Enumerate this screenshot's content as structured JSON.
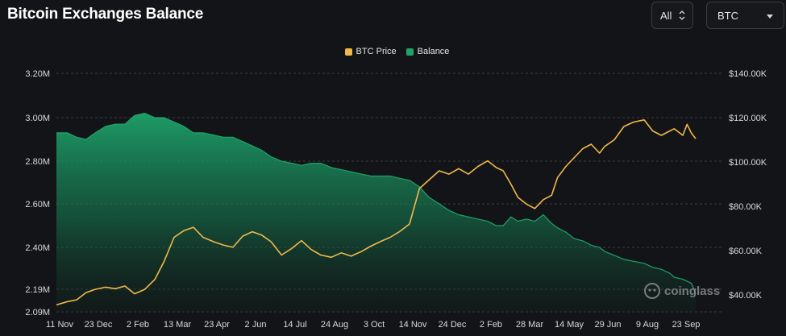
{
  "header": {
    "title": "Bitcoin Exchanges Balance",
    "range_select": "All",
    "coin_select": "BTC"
  },
  "watermark": "coinglass",
  "colors": {
    "btc_price": "#F0B94A",
    "balance": "#1EA36A",
    "background": "#131417",
    "grid": "#3a3c40",
    "text": "#e6e6e6"
  },
  "chart_data": {
    "type": "line",
    "title": "Bitcoin Exchanges Balance",
    "legend_position": "top-center",
    "grid": true,
    "x_ticks": [
      "11 Nov",
      "23 Dec",
      "2 Feb",
      "13 Mar",
      "23 Apr",
      "2 Jun",
      "14 Jul",
      "24 Aug",
      "3 Oct",
      "14 Nov",
      "24 Dec",
      "2 Feb",
      "28 Mar",
      "14 May",
      "29 Jun",
      "9 Aug",
      "23 Sep"
    ],
    "y_left": {
      "ticks": [
        "3.20M",
        "3.00M",
        "2.80M",
        "2.60M",
        "2.40M",
        "2.19M",
        "2.09M"
      ],
      "tick_values": [
        3.2,
        3.0,
        2.8,
        2.6,
        2.4,
        2.19,
        2.09
      ],
      "range": [
        2.09,
        3.2
      ]
    },
    "y_right": {
      "ticks": [
        "$140.00K",
        "$120.00K",
        "$100.00K",
        "$80.00K",
        "$60.00K",
        "$40.00K"
      ],
      "tick_values": [
        140,
        120,
        100,
        80,
        60,
        40
      ],
      "range": [
        30,
        140
      ]
    },
    "series": [
      {
        "name": "BTC Price",
        "axis": "right",
        "type": "line",
        "x": [
          "11 Nov",
          "23 Nov",
          "3 Dec",
          "13 Dec",
          "23 Dec",
          "3 Jan",
          "13 Jan",
          "23 Jan",
          "2 Feb",
          "12 Feb",
          "22 Feb",
          "3 Mar",
          "13 Mar",
          "23 Mar",
          "2 Apr",
          "12 Apr",
          "23 Apr",
          "3 May",
          "13 May",
          "23 May",
          "2 Jun",
          "12 Jun",
          "22 Jun",
          "3 Jul",
          "14 Jul",
          "24 Jul",
          "3 Aug",
          "13 Aug",
          "24 Aug",
          "3 Sep",
          "13 Sep",
          "23 Sep",
          "3 Oct",
          "13 Oct",
          "24 Oct",
          "3 Nov",
          "14 Nov",
          "24 Nov",
          "4 Dec",
          "14 Dec",
          "24 Dec",
          "3 Jan",
          "13 Jan",
          "23 Jan",
          "2 Feb",
          "14 Feb",
          "24 Feb",
          "6 Mar",
          "16 Mar",
          "28 Mar",
          "7 Apr",
          "17 Apr",
          "27 Apr",
          "4 May",
          "14 May",
          "24 May",
          "3 Jun",
          "13 Jun",
          "23 Jun",
          "29 Jun",
          "9 Jul",
          "19 Jul",
          "29 Jul",
          "9 Aug",
          "19 Aug",
          "29 Aug",
          "8 Sep",
          "13 Sep",
          "23 Sep",
          "28 Sep",
          "3 Oct",
          "8 Oct"
        ],
        "values": [
          35.5,
          37,
          37.8,
          41,
          42.5,
          43.5,
          42.8,
          44,
          40.5,
          42.5,
          47,
          55,
          66,
          69,
          70.5,
          66,
          64,
          62.5,
          61.5,
          66.5,
          68.5,
          67,
          64,
          58,
          61,
          64.5,
          60.5,
          58,
          57,
          59,
          57.5,
          59.5,
          62,
          64,
          66,
          68.5,
          72,
          88,
          92,
          96,
          94.5,
          97,
          94.5,
          98,
          100.5,
          97.5,
          96,
          90,
          84,
          81,
          79,
          83,
          85,
          93,
          98,
          102,
          106,
          108,
          104,
          107,
          110,
          116,
          118,
          119,
          114,
          112,
          114,
          115,
          112,
          117,
          113,
          110.5
        ]
      },
      {
        "name": "Balance",
        "axis": "left",
        "type": "area",
        "x": [
          "11 Nov",
          "23 Nov",
          "3 Dec",
          "13 Dec",
          "23 Dec",
          "3 Jan",
          "13 Jan",
          "23 Jan",
          "2 Feb",
          "12 Feb",
          "22 Feb",
          "3 Mar",
          "13 Mar",
          "23 Mar",
          "2 Apr",
          "12 Apr",
          "23 Apr",
          "3 May",
          "13 May",
          "23 May",
          "2 Jun",
          "12 Jun",
          "22 Jun",
          "3 Jul",
          "14 Jul",
          "24 Jul",
          "3 Aug",
          "13 Aug",
          "24 Aug",
          "3 Sep",
          "13 Sep",
          "23 Sep",
          "3 Oct",
          "13 Oct",
          "24 Oct",
          "3 Nov",
          "14 Nov",
          "24 Nov",
          "4 Dec",
          "14 Dec",
          "24 Dec",
          "3 Jan",
          "13 Jan",
          "23 Jan",
          "2 Feb",
          "14 Feb",
          "24 Feb",
          "6 Mar",
          "16 Mar",
          "28 Mar",
          "7 Apr",
          "17 Apr",
          "27 Apr",
          "4 May",
          "14 May",
          "24 May",
          "3 Jun",
          "13 Jun",
          "23 Jun",
          "29 Jun",
          "9 Jul",
          "19 Jul",
          "29 Jul",
          "9 Aug",
          "19 Aug",
          "29 Aug",
          "8 Sep",
          "13 Sep",
          "23 Sep",
          "28 Sep",
          "3 Oct",
          "8 Oct"
        ],
        "values": [
          2.93,
          2.93,
          2.91,
          2.9,
          2.93,
          2.96,
          2.97,
          2.97,
          3.01,
          3.02,
          3.0,
          3.0,
          2.98,
          2.96,
          2.93,
          2.93,
          2.92,
          2.91,
          2.91,
          2.89,
          2.87,
          2.85,
          2.82,
          2.8,
          2.79,
          2.78,
          2.79,
          2.79,
          2.77,
          2.76,
          2.75,
          2.74,
          2.73,
          2.73,
          2.73,
          2.72,
          2.71,
          2.68,
          2.63,
          2.6,
          2.57,
          2.55,
          2.54,
          2.53,
          2.52,
          2.5,
          2.5,
          2.54,
          2.52,
          2.53,
          2.52,
          2.55,
          2.51,
          2.49,
          2.47,
          2.44,
          2.43,
          2.41,
          2.4,
          2.38,
          2.36,
          2.34,
          2.33,
          2.32,
          2.3,
          2.29,
          2.27,
          2.25,
          2.24,
          2.23,
          2.22,
          2.17
        ]
      }
    ]
  }
}
